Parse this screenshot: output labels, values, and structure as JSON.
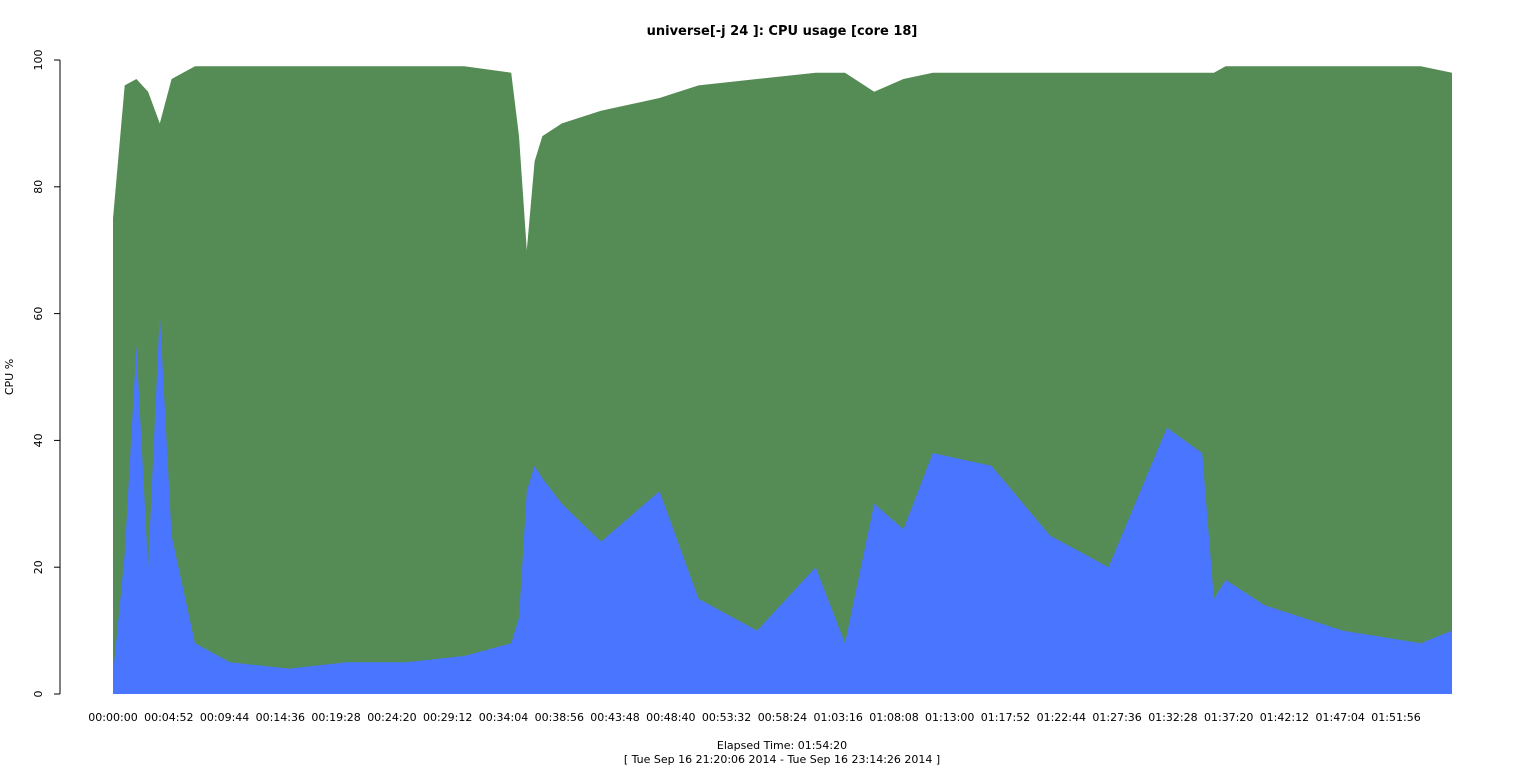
{
  "chart_data": {
    "type": "area",
    "title": "universe[-j 24  ]: CPU usage [core 18]",
    "ylabel": "CPU %",
    "xlabel": "Elapsed Time: 01:54:20",
    "subtitle": "[ Tue Sep 16 21:20:06 2014 - Tue Sep 16 23:14:26 2014 ]",
    "ylim": [
      0,
      100
    ],
    "y_ticks": [
      "0",
      "20",
      "40",
      "60",
      "80",
      "100"
    ],
    "x_tick_labels": [
      "00:00:00",
      "00:04:52",
      "00:09:44",
      "00:14:36",
      "00:19:28",
      "00:24:20",
      "00:29:12",
      "00:34:04",
      "00:38:56",
      "00:43:48",
      "00:48:40",
      "00:53:32",
      "00:58:24",
      "01:03:16",
      "01:08:08",
      "01:13:00",
      "01:17:52",
      "01:22:44",
      "01:27:36",
      "01:32:28",
      "01:37:20",
      "01:42:12",
      "01:47:04",
      "01:51:56"
    ],
    "x_seconds": [
      0,
      60,
      120,
      180,
      240,
      300,
      420,
      600,
      900,
      1200,
      1500,
      1800,
      2040,
      2080,
      2120,
      2160,
      2200,
      2300,
      2500,
      2800,
      3000,
      3300,
      3600,
      3750,
      3900,
      4050,
      4200,
      4500,
      4800,
      5100,
      5400,
      5580,
      5640,
      5700,
      5900,
      6300,
      6700,
      6860
    ],
    "series": [
      {
        "color": "#4a76ff",
        "values": [
          3,
          22,
          55,
          20,
          60,
          25,
          8,
          5,
          4,
          5,
          5,
          6,
          8,
          12,
          32,
          36,
          34,
          30,
          24,
          32,
          15,
          10,
          20,
          8,
          30,
          26,
          38,
          36,
          25,
          20,
          42,
          38,
          15,
          18,
          14,
          10,
          8,
          10
        ]
      },
      {
        "color": "#558b55",
        "values": [
          75,
          96,
          97,
          95,
          90,
          97,
          99,
          99,
          99,
          99,
          99,
          99,
          98,
          88,
          70,
          84,
          88,
          90,
          92,
          94,
          96,
          97,
          98,
          98,
          95,
          97,
          98,
          98,
          98,
          98,
          98,
          98,
          98,
          99,
          99,
          99,
          99,
          98
        ]
      }
    ],
    "grid": false,
    "legend": "none"
  }
}
